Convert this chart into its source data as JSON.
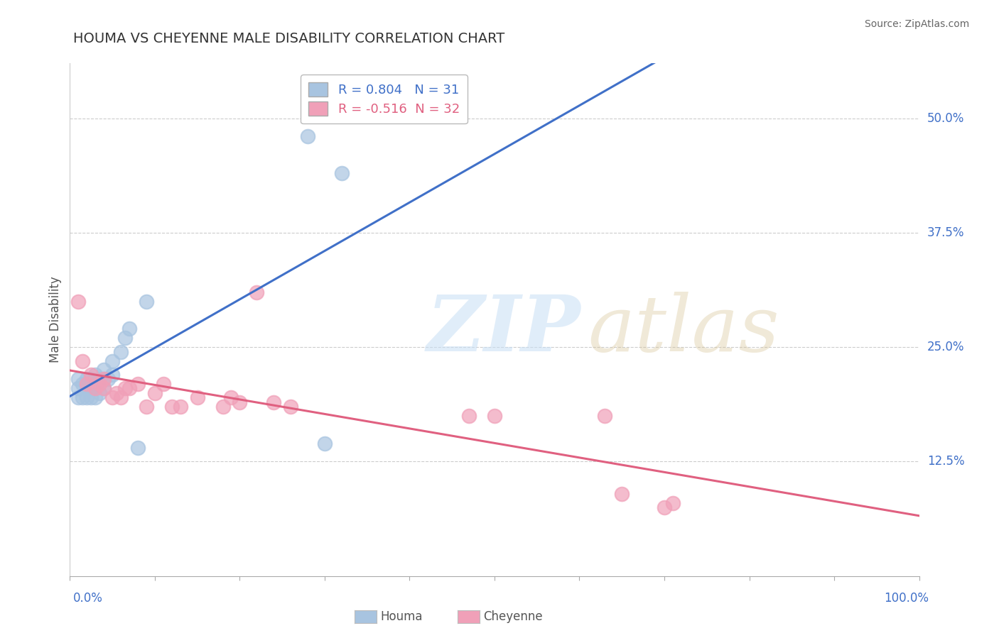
{
  "title": "HOUMA VS CHEYENNE MALE DISABILITY CORRELATION CHART",
  "source": "Source: ZipAtlas.com",
  "ylabel": "Male Disability",
  "yticks": [
    0.125,
    0.25,
    0.375,
    0.5
  ],
  "ytick_labels": [
    "12.5%",
    "25.0%",
    "37.5%",
    "50.0%"
  ],
  "xlim": [
    0.0,
    1.0
  ],
  "ylim": [
    0.0,
    0.56
  ],
  "houma_R": 0.804,
  "houma_N": 31,
  "cheyenne_R": -0.516,
  "cheyenne_N": 32,
  "houma_color": "#a8c4e0",
  "cheyenne_color": "#f0a0b8",
  "houma_line_color": "#4070c8",
  "cheyenne_line_color": "#e06080",
  "houma_x": [
    0.01,
    0.01,
    0.01,
    0.015,
    0.015,
    0.02,
    0.02,
    0.02,
    0.02,
    0.025,
    0.025,
    0.025,
    0.03,
    0.03,
    0.03,
    0.035,
    0.035,
    0.04,
    0.04,
    0.04,
    0.045,
    0.05,
    0.05,
    0.06,
    0.065,
    0.07,
    0.08,
    0.09,
    0.28,
    0.3,
    0.32
  ],
  "houma_y": [
    0.195,
    0.205,
    0.215,
    0.195,
    0.21,
    0.195,
    0.205,
    0.21,
    0.215,
    0.195,
    0.205,
    0.215,
    0.195,
    0.21,
    0.22,
    0.2,
    0.215,
    0.205,
    0.215,
    0.225,
    0.215,
    0.22,
    0.235,
    0.245,
    0.26,
    0.27,
    0.14,
    0.3,
    0.48,
    0.145,
    0.44
  ],
  "cheyenne_x": [
    0.01,
    0.015,
    0.02,
    0.025,
    0.03,
    0.035,
    0.04,
    0.04,
    0.05,
    0.055,
    0.06,
    0.065,
    0.07,
    0.08,
    0.09,
    0.1,
    0.11,
    0.12,
    0.13,
    0.15,
    0.18,
    0.19,
    0.2,
    0.22,
    0.24,
    0.26,
    0.47,
    0.5,
    0.63,
    0.65,
    0.7,
    0.71
  ],
  "cheyenne_y": [
    0.3,
    0.235,
    0.21,
    0.22,
    0.205,
    0.21,
    0.205,
    0.215,
    0.195,
    0.2,
    0.195,
    0.205,
    0.205,
    0.21,
    0.185,
    0.2,
    0.21,
    0.185,
    0.185,
    0.195,
    0.185,
    0.195,
    0.19,
    0.31,
    0.19,
    0.185,
    0.175,
    0.175,
    0.175,
    0.09,
    0.075,
    0.08
  ],
  "background_color": "#ffffff",
  "grid_color": "#cccccc",
  "title_color": "#333333",
  "source_color": "#666666",
  "axis_label_color": "#555555"
}
